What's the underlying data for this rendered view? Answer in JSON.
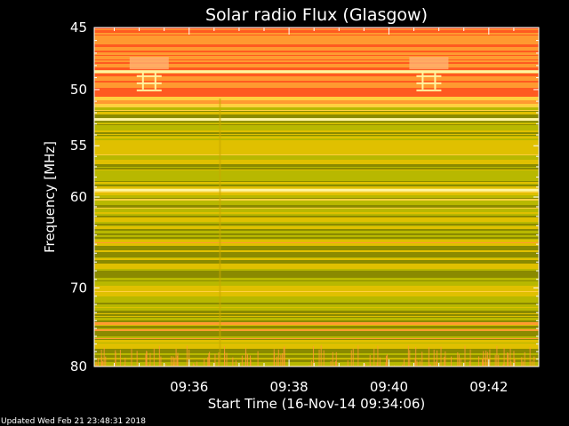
{
  "chart_data": {
    "type": "heatmap",
    "title": "Solar radio Flux (Glasgow)",
    "xlabel": "Start Time (16-Nov-14 09:34:06)",
    "ylabel": "Frequency [MHz]",
    "x_start_time": "09:34:06",
    "x_end_time": "09:43:00",
    "xlim_minutes": [
      34.1,
      43.0
    ],
    "ylim": [
      45,
      80
    ],
    "y_scale": "log",
    "x_ticks": [
      {
        "label": "09:36",
        "minute": 36
      },
      {
        "label": "09:38",
        "minute": 38
      },
      {
        "label": "09:40",
        "minute": 40
      },
      {
        "label": "09:42",
        "minute": 42
      }
    ],
    "y_ticks": [
      {
        "label": "45",
        "value": 45
      },
      {
        "label": "50",
        "value": 50
      },
      {
        "label": "55",
        "value": 55
      },
      {
        "label": "60",
        "value": 60
      },
      {
        "label": "70",
        "value": 70
      },
      {
        "label": "80",
        "value": 80
      }
    ],
    "colormap": [
      "#8a8a00",
      "#b8b800",
      "#e0c000",
      "#ffd040",
      "#ff9a30",
      "#ff5a20"
    ]
  },
  "footer": {
    "updated": "Updated Wed Feb 21 23:48:31 2018"
  }
}
